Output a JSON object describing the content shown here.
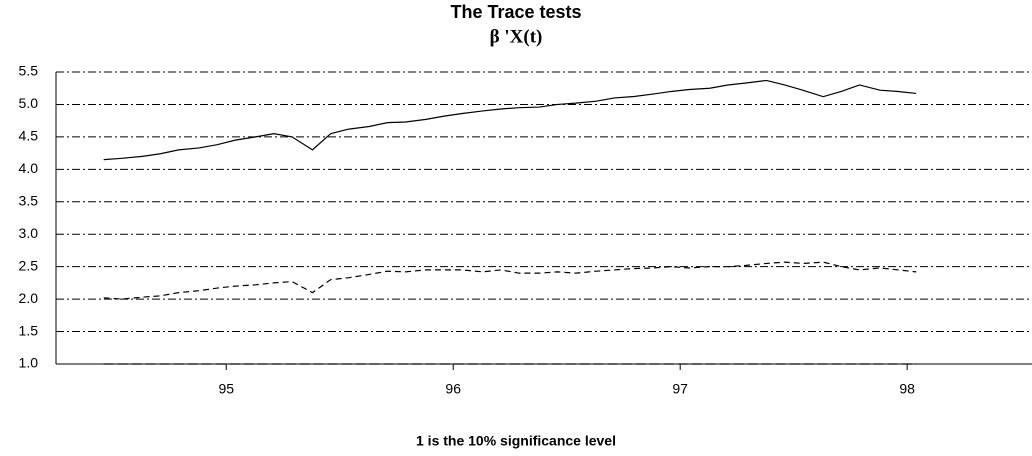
{
  "chart_data": {
    "type": "line",
    "title": "The Trace tests",
    "subtitle": "β 'X(t)",
    "annotation": "1 is the 10% significance level",
    "x": [
      94.46,
      94.54,
      94.63,
      94.71,
      94.79,
      94.88,
      94.96,
      95.04,
      95.13,
      95.21,
      95.29,
      95.38,
      95.46,
      95.54,
      95.63,
      95.71,
      95.79,
      95.88,
      95.96,
      96.04,
      96.13,
      96.21,
      96.29,
      96.38,
      96.46,
      96.54,
      96.63,
      96.71,
      96.79,
      96.88,
      96.96,
      97.04,
      97.13,
      97.21,
      97.29,
      97.38,
      97.46,
      97.54,
      97.63,
      97.71,
      97.79,
      97.88,
      97.96,
      98.04
    ],
    "series": [
      {
        "color": "#000000",
        "dash": "solid",
        "values": [
          4.15,
          4.17,
          4.2,
          4.24,
          4.3,
          4.33,
          4.38,
          4.45,
          4.5,
          4.55,
          4.5,
          4.3,
          4.55,
          4.62,
          4.66,
          4.72,
          4.73,
          4.77,
          4.82,
          4.86,
          4.9,
          4.93,
          4.95,
          4.96,
          5.0,
          5.02,
          5.05,
          5.1,
          5.12,
          5.16,
          5.2,
          5.23,
          5.25,
          5.3,
          5.33,
          5.37,
          5.3,
          5.22,
          5.12,
          5.2,
          5.3,
          5.22,
          5.2,
          5.17
        ]
      },
      {
        "color": "#000000",
        "dash": "dashed",
        "values": [
          2.02,
          2.0,
          2.03,
          2.05,
          2.1,
          2.13,
          2.17,
          2.2,
          2.22,
          2.25,
          2.27,
          2.1,
          2.3,
          2.33,
          2.38,
          2.43,
          2.42,
          2.45,
          2.45,
          2.45,
          2.42,
          2.45,
          2.4,
          2.4,
          2.42,
          2.4,
          2.43,
          2.45,
          2.47,
          2.48,
          2.5,
          2.48,
          2.5,
          2.5,
          2.52,
          2.55,
          2.57,
          2.55,
          2.57,
          2.5,
          2.45,
          2.48,
          2.45,
          2.42
        ]
      },
      {
        "color": "#000000",
        "dash": "long-dash",
        "x": [
          94.46,
          98.04
        ],
        "values": [
          1,
          1
        ]
      }
    ],
    "xlim": [
      94.25,
      98.55
    ],
    "xticks": [
      95,
      96,
      97,
      98
    ],
    "ylim": [
      1,
      5.5
    ],
    "yticks": [
      {
        "value": 1,
        "label": "1.0"
      },
      1.5,
      {
        "value": 2,
        "label": "2.0"
      },
      2.5,
      {
        "value": 3,
        "label": "3.0"
      },
      3.5,
      {
        "value": 4,
        "label": "4.0"
      },
      4.5,
      {
        "value": 5,
        "label": "5.0"
      },
      5.5
    ],
    "grid": true
  }
}
